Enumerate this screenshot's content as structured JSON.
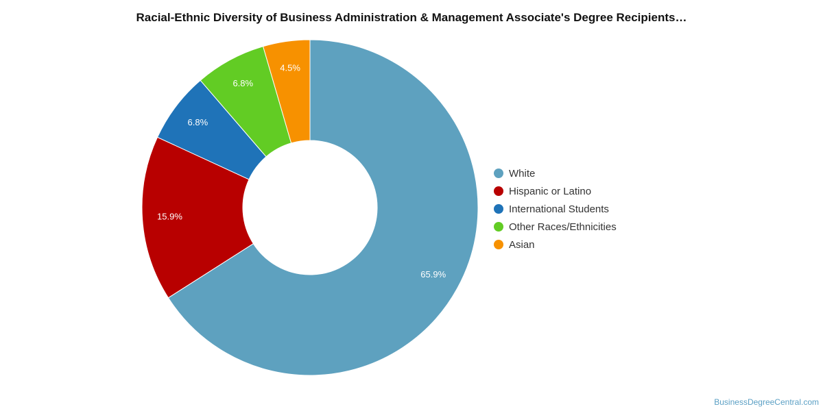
{
  "chart_data": {
    "type": "pie",
    "title": "Racial-Ethnic Diversity of Business Administration & Management Associate's Degree Recipients…",
    "donut": true,
    "legend_position": "right",
    "categories": [
      "White",
      "Hispanic or Latino",
      "International Students",
      "Other Races/Ethnicities",
      "Asian"
    ],
    "values": [
      65.9,
      15.9,
      6.8,
      6.8,
      4.5
    ],
    "value_labels": [
      "65.9%",
      "15.9%",
      "6.8%",
      "6.8%",
      "4.5%"
    ],
    "colors": [
      "#5ea1bf",
      "#b80000",
      "#1f73b8",
      "#62cc24",
      "#f79100"
    ]
  },
  "footer": {
    "credit": "BusinessDegreeCentral.com"
  }
}
